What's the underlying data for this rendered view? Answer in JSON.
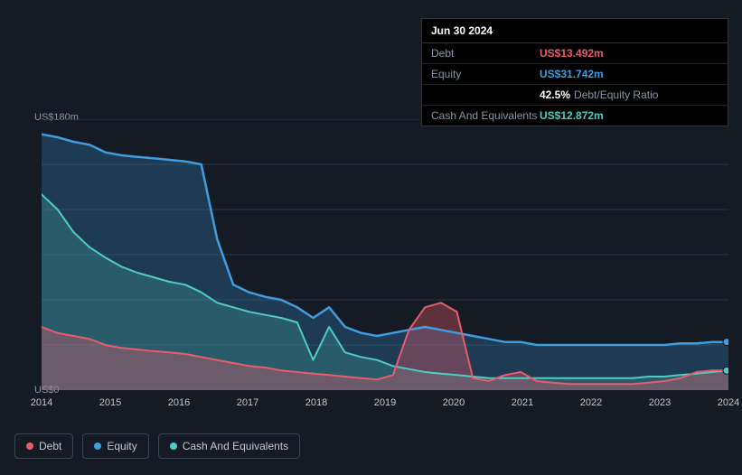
{
  "chart": {
    "type": "area",
    "background_color": "#151b24",
    "grid_color": "#2a3442",
    "text_color": "#c0c8d4",
    "muted_text_color": "#8a94a6",
    "ylim": [
      0,
      180
    ],
    "ylabels": [
      {
        "value": 180,
        "label": "US$180m"
      },
      {
        "value": 0,
        "label": "US$0"
      }
    ],
    "x_categories": [
      "2014",
      "2015",
      "2016",
      "2017",
      "2018",
      "2019",
      "2020",
      "2021",
      "2022",
      "2023",
      "2024"
    ],
    "series": {
      "debt": {
        "label": "Debt",
        "color": "#e85c6d",
        "fill_color": "rgba(232,92,109,0.35)",
        "line_width": 2,
        "values": [
          42,
          38,
          36,
          34,
          30,
          28,
          27,
          26,
          25,
          24,
          22,
          20,
          18,
          16,
          15,
          13,
          12,
          11,
          10,
          9,
          8,
          7,
          10,
          40,
          55,
          58,
          52,
          8,
          6,
          10,
          12,
          6,
          5,
          4,
          4,
          4,
          4,
          4,
          5,
          6,
          8,
          12,
          13,
          13
        ]
      },
      "equity": {
        "label": "Equity",
        "color": "#3f9de0",
        "fill_color": "rgba(63,157,224,0.25)",
        "line_width": 2.5,
        "values": [
          170,
          168,
          165,
          163,
          158,
          156,
          155,
          154,
          153,
          152,
          150,
          100,
          70,
          65,
          62,
          60,
          55,
          48,
          55,
          42,
          38,
          36,
          38,
          40,
          42,
          40,
          38,
          36,
          34,
          32,
          32,
          30,
          30,
          30,
          30,
          30,
          30,
          30,
          30,
          30,
          31,
          31,
          32,
          32
        ]
      },
      "cash": {
        "label": "Cash And Equivalents",
        "color": "#4ecdc4",
        "fill_color": "rgba(78,205,196,0.22)",
        "line_width": 2,
        "values": [
          130,
          120,
          105,
          95,
          88,
          82,
          78,
          75,
          72,
          70,
          65,
          58,
          55,
          52,
          50,
          48,
          45,
          20,
          42,
          25,
          22,
          20,
          16,
          14,
          12,
          11,
          10,
          9,
          8,
          8,
          8,
          8,
          8,
          8,
          8,
          8,
          8,
          8,
          9,
          9,
          10,
          11,
          12,
          13
        ]
      }
    }
  },
  "tooltip": {
    "date": "Jun 30 2024",
    "rows": [
      {
        "label": "Debt",
        "value": "US$13.492m",
        "color": "#e85c6d"
      },
      {
        "label": "Equity",
        "value": "US$31.742m",
        "color": "#3f9de0"
      },
      {
        "label": "",
        "value": "42.5%",
        "sub": "Debt/Equity Ratio",
        "color": "#ffffff"
      },
      {
        "label": "Cash And Equivalents",
        "value": "US$12.872m",
        "color": "#4ecdc4"
      }
    ]
  },
  "legend": [
    {
      "label": "Debt",
      "color": "#e85c6d"
    },
    {
      "label": "Equity",
      "color": "#3f9de0"
    },
    {
      "label": "Cash And Equivalents",
      "color": "#4ecdc4"
    }
  ]
}
